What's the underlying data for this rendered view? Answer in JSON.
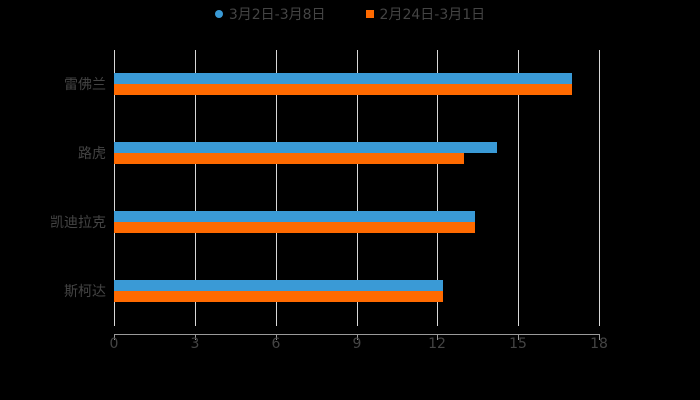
{
  "chart_data": {
    "type": "bar",
    "orientation": "horizontal",
    "title": "",
    "categories": [
      "雷佛兰",
      "路虎",
      "凯迪拉克",
      "斯柯达"
    ],
    "series": [
      {
        "name": "3月2日-3月8日",
        "color": "#3a9ad6",
        "marker": "circle",
        "values": [
          17.0,
          14.2,
          13.4,
          12.2
        ]
      },
      {
        "name": "2月24日-3月1日",
        "color": "#ff6a00",
        "marker": "square",
        "values": [
          17.0,
          13.0,
          13.4,
          12.2
        ]
      }
    ],
    "xlabel": "",
    "ylabel": "",
    "xlim": [
      0,
      18
    ],
    "xticks": [
      "0",
      "3",
      "6",
      "9",
      "12",
      "15",
      "18"
    ],
    "grid": true,
    "legend_position": "top"
  },
  "legend": {
    "items": [
      {
        "label": "3月2日-3月8日",
        "color": "#3a9ad6"
      },
      {
        "label": "2月24日-3月1日",
        "color": "#ff6a00"
      }
    ]
  }
}
